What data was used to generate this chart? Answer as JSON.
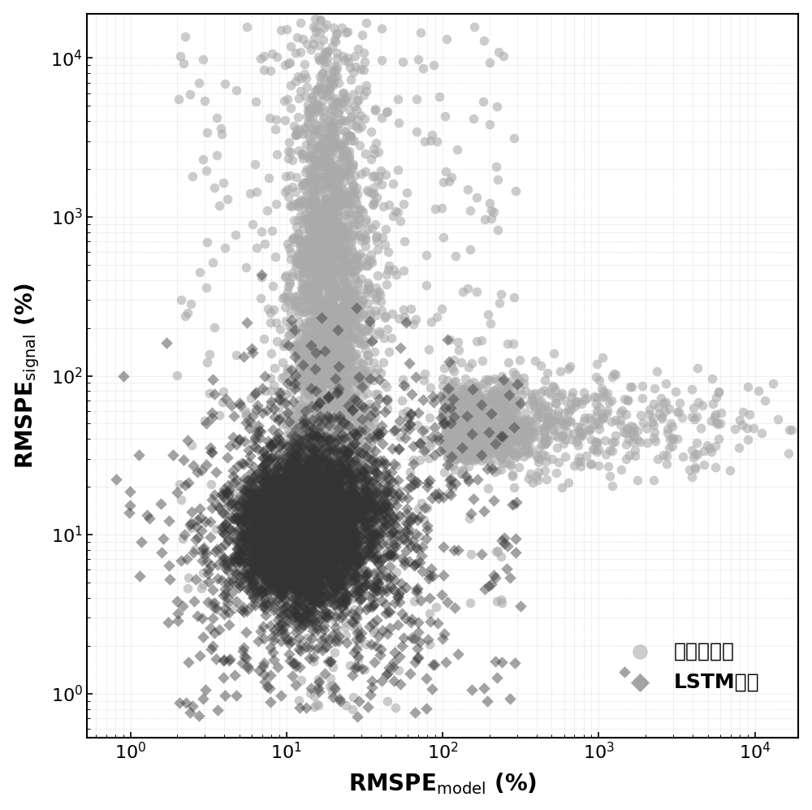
{
  "xlabel_main": "RMSPE",
  "xlabel_sub": "model",
  "xlabel_unit": " (%)",
  "ylabel_main": "RMSPE",
  "ylabel_sub": "signal",
  "ylabel_unit": " (%)",
  "legend_gauss": "高斯牛顿法",
  "legend_lstm": "LSTM网络",
  "gauss_color": "#aaaaaa",
  "lstm_color": "#333333",
  "background_color": "#ffffff",
  "grid_color": "#bbbbbb",
  "n_gauss": 4000,
  "n_lstm": 5000,
  "seed": 42
}
